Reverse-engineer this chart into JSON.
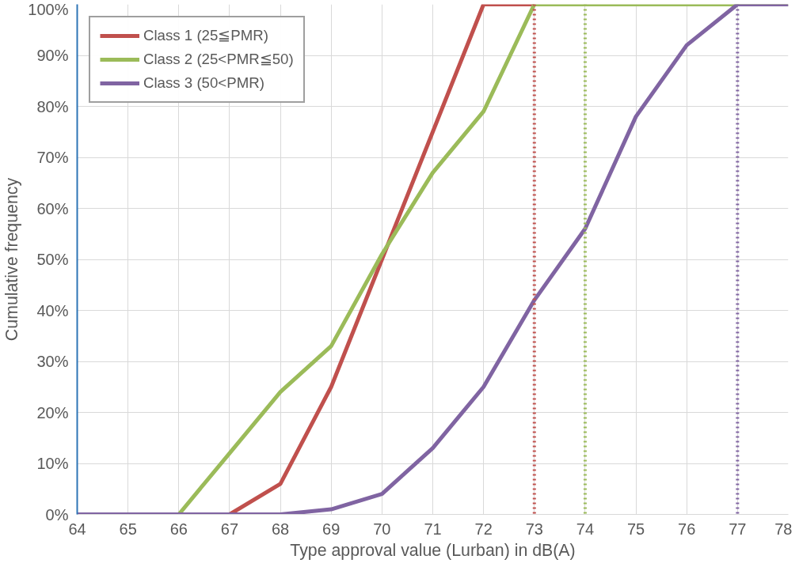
{
  "chart_data": {
    "type": "line",
    "xlabel": "Type approval value (Lurban) in dB(A)",
    "ylabel": "Cumulative frequency",
    "xlim": [
      64,
      78
    ],
    "xticks": [
      64,
      65,
      66,
      67,
      68,
      69,
      70,
      71,
      72,
      73,
      74,
      75,
      76,
      77,
      78
    ],
    "ylim": [
      0,
      100
    ],
    "yticks": [
      {
        "value": 0,
        "label": "0%"
      },
      {
        "value": 10,
        "label": "10%"
      },
      {
        "value": 20,
        "label": "20%"
      },
      {
        "value": 30,
        "label": "30%"
      },
      {
        "value": 40,
        "label": "40%"
      },
      {
        "value": 50,
        "label": "50%"
      },
      {
        "value": 60,
        "label": "60%"
      },
      {
        "value": 70,
        "label": "70%"
      },
      {
        "value": 80,
        "label": "80%"
      },
      {
        "value": 90,
        "label": "90%"
      },
      {
        "value": 100,
        "label": "100%"
      }
    ],
    "grid": true,
    "legend": "top left",
    "marker": "none",
    "line_style": "solid",
    "series": [
      {
        "name": "Class 1 (25≦PMR)",
        "color": "#c0504d",
        "x": [
          67,
          68,
          69,
          70,
          71,
          72,
          73
        ],
        "values": [
          0,
          6,
          25,
          50,
          75,
          100,
          100
        ]
      },
      {
        "name": "Class 2 (25<PMR≦50)",
        "color": "#9bbb59",
        "x": [
          66,
          67,
          68,
          69,
          70,
          71,
          72,
          73,
          74,
          75,
          76,
          77,
          78
        ],
        "values": [
          0,
          12,
          24,
          33,
          51,
          67,
          79,
          100,
          100,
          100,
          100,
          100,
          100
        ]
      },
      {
        "name": "Class 3 (50<PMR)",
        "color": "#8064a2",
        "x": [
          64,
          65,
          66,
          67,
          68,
          69,
          70,
          71,
          72,
          73,
          74,
          75,
          76,
          77,
          78
        ],
        "values": [
          0,
          0,
          0,
          0,
          0,
          1,
          4,
          13,
          25,
          42,
          56,
          78,
          92,
          100,
          100
        ]
      }
    ],
    "ref_lines": [
      {
        "axis": "x",
        "value": 73,
        "color": "#c0504d",
        "line_style": "dotted"
      },
      {
        "axis": "x",
        "value": 74,
        "color": "#9bbb59",
        "line_style": "dotted"
      },
      {
        "axis": "x",
        "value": 77,
        "color": "#8064a2",
        "line_style": "dotted"
      }
    ]
  }
}
